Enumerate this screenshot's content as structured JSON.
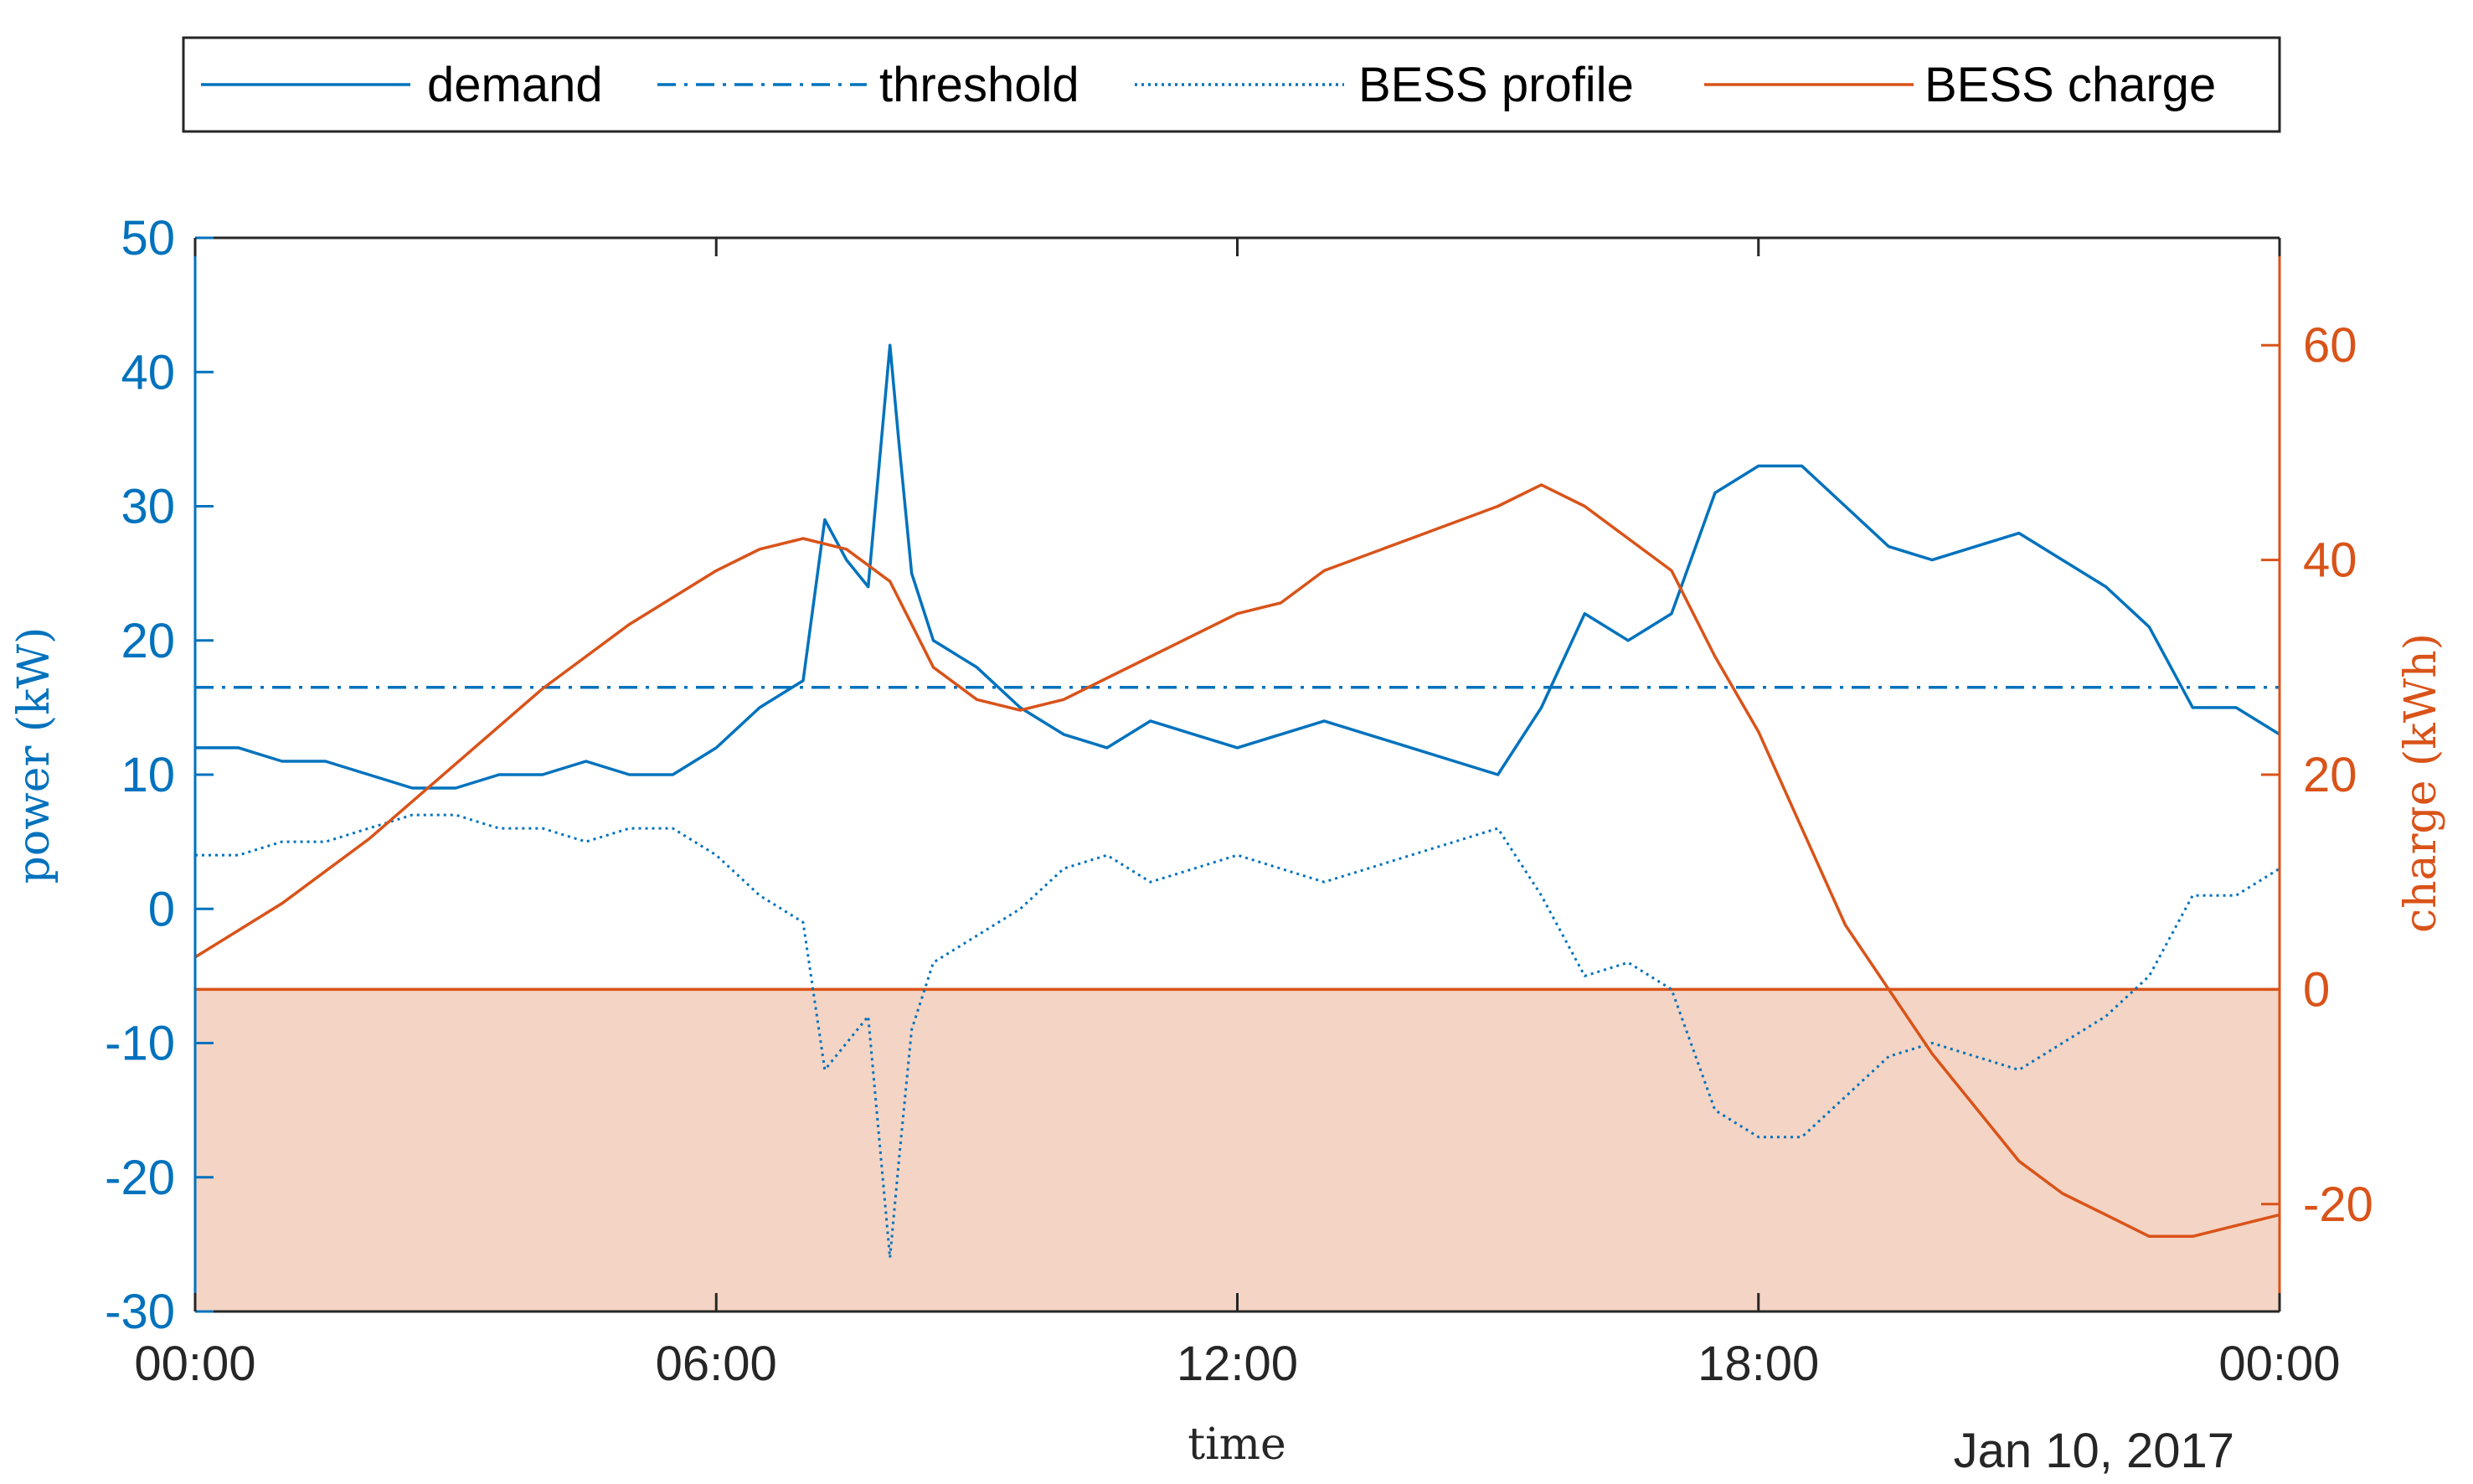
{
  "chart_data": {
    "type": "line",
    "xlabel": "time",
    "date_label": "Jan 10, 2017",
    "x_tick_labels": [
      "00:00",
      "06:00",
      "12:00",
      "18:00",
      "00:00"
    ],
    "x_ticks_hours": [
      0,
      6,
      12,
      18,
      24
    ],
    "xlim_hours": [
      0,
      24
    ],
    "left_axis": {
      "label": "power (kW)",
      "ylim": [
        -30,
        50
      ],
      "ticks": [
        50,
        40,
        30,
        20,
        10,
        0,
        -10,
        -20,
        -30
      ],
      "tick_labels": [
        "50",
        "40",
        "30",
        "20",
        "10",
        "0",
        "-10",
        "-20",
        "-30"
      ],
      "color": "#0072BD"
    },
    "right_axis": {
      "label": "charge (kWh)",
      "ylim": [
        -30,
        70
      ],
      "ticks": [
        60,
        40,
        20,
        0,
        -20
      ],
      "tick_labels": [
        "60",
        "40",
        "20",
        "0",
        "-20"
      ],
      "color": "#D95319"
    },
    "legend": {
      "placement": "top",
      "entries": [
        "demand",
        "threshold",
        "BESS profile",
        "BESS charge"
      ]
    },
    "series": [
      {
        "name": "demand",
        "axis": "left",
        "style": "solid",
        "color": "#0072BD",
        "x": [
          0,
          0.5,
          1,
          1.5,
          2,
          2.5,
          3,
          3.5,
          4,
          4.5,
          5,
          5.5,
          6,
          6.5,
          7,
          7.25,
          7.5,
          7.75,
          8,
          8.1,
          8.25,
          8.5,
          9,
          9.5,
          10,
          10.5,
          11,
          11.5,
          12,
          12.5,
          13,
          13.5,
          14,
          14.5,
          15,
          15.5,
          16,
          16.5,
          17,
          17.5,
          18,
          18.5,
          19,
          19.5,
          20,
          20.5,
          21,
          21.5,
          22,
          22.5,
          23,
          23.5,
          24
        ],
        "y": [
          12,
          12,
          11,
          11,
          10,
          9,
          9,
          10,
          10,
          11,
          10,
          10,
          12,
          15,
          17,
          29,
          26,
          24,
          42,
          35,
          25,
          20,
          18,
          15,
          13,
          12,
          14,
          13,
          12,
          13,
          14,
          13,
          12,
          11,
          10,
          15,
          22,
          20,
          22,
          31,
          33,
          33,
          30,
          27,
          26,
          27,
          28,
          26,
          24,
          21,
          15,
          15,
          13
        ]
      },
      {
        "name": "threshold",
        "axis": "left",
        "style": "dash-dot",
        "color": "#0072BD",
        "x": [
          0,
          24
        ],
        "y": [
          16.5,
          16.5
        ]
      },
      {
        "name": "BESS profile",
        "axis": "left",
        "style": "dotted",
        "color": "#0072BD",
        "x": [
          0,
          0.5,
          1,
          1.5,
          2,
          2.5,
          3,
          3.5,
          4,
          4.5,
          5,
          5.5,
          6,
          6.5,
          7,
          7.25,
          7.5,
          7.75,
          8,
          8.1,
          8.25,
          8.5,
          9,
          9.5,
          10,
          10.5,
          11,
          11.5,
          12,
          12.5,
          13,
          13.5,
          14,
          14.5,
          15,
          15.5,
          16,
          16.5,
          17,
          17.5,
          18,
          18.5,
          19,
          19.5,
          20,
          20.5,
          21,
          21.5,
          22,
          22.5,
          23,
          23.5,
          24
        ],
        "y": [
          4,
          4,
          5,
          5,
          6,
          7,
          7,
          6,
          6,
          5,
          6,
          6,
          4,
          1,
          -1,
          -12,
          -10,
          -8,
          -26,
          -19,
          -9,
          -4,
          -2,
          0,
          3,
          4,
          2,
          3,
          4,
          3,
          2,
          3,
          4,
          5,
          6,
          1,
          -5,
          -4,
          -6,
          -15,
          -17,
          -17,
          -14,
          -11,
          -10,
          -11,
          -12,
          -10,
          -8,
          -5,
          1,
          1,
          3
        ]
      },
      {
        "name": "BESS charge",
        "axis": "right",
        "style": "solid",
        "color": "#D95319",
        "x": [
          0,
          1,
          2,
          3,
          4,
          5,
          6,
          6.5,
          7,
          7.5,
          8,
          8.5,
          9,
          9.5,
          10,
          11,
          12,
          12.5,
          13,
          14,
          15,
          15.5,
          16,
          16.5,
          17,
          17.5,
          18,
          18.5,
          19,
          19.5,
          20,
          20.5,
          21,
          21.5,
          22,
          22.5,
          23,
          23.5,
          24
        ],
        "y": [
          3,
          8,
          14,
          21,
          28,
          34,
          39,
          41,
          42,
          41,
          38,
          30,
          27,
          26,
          27,
          31,
          35,
          36,
          39,
          42,
          45,
          47,
          45,
          42,
          39,
          31,
          24,
          15,
          6,
          0,
          -6,
          -11,
          -16,
          -19,
          -21,
          -23,
          -23,
          -22,
          -21
        ]
      }
    ],
    "shaded_region": {
      "description": "negative charge region",
      "axis": "right",
      "ymin": -30,
      "ymax": 0,
      "fill_color": "#F4D4C4",
      "line_color": "#D95319"
    },
    "grid": false
  }
}
